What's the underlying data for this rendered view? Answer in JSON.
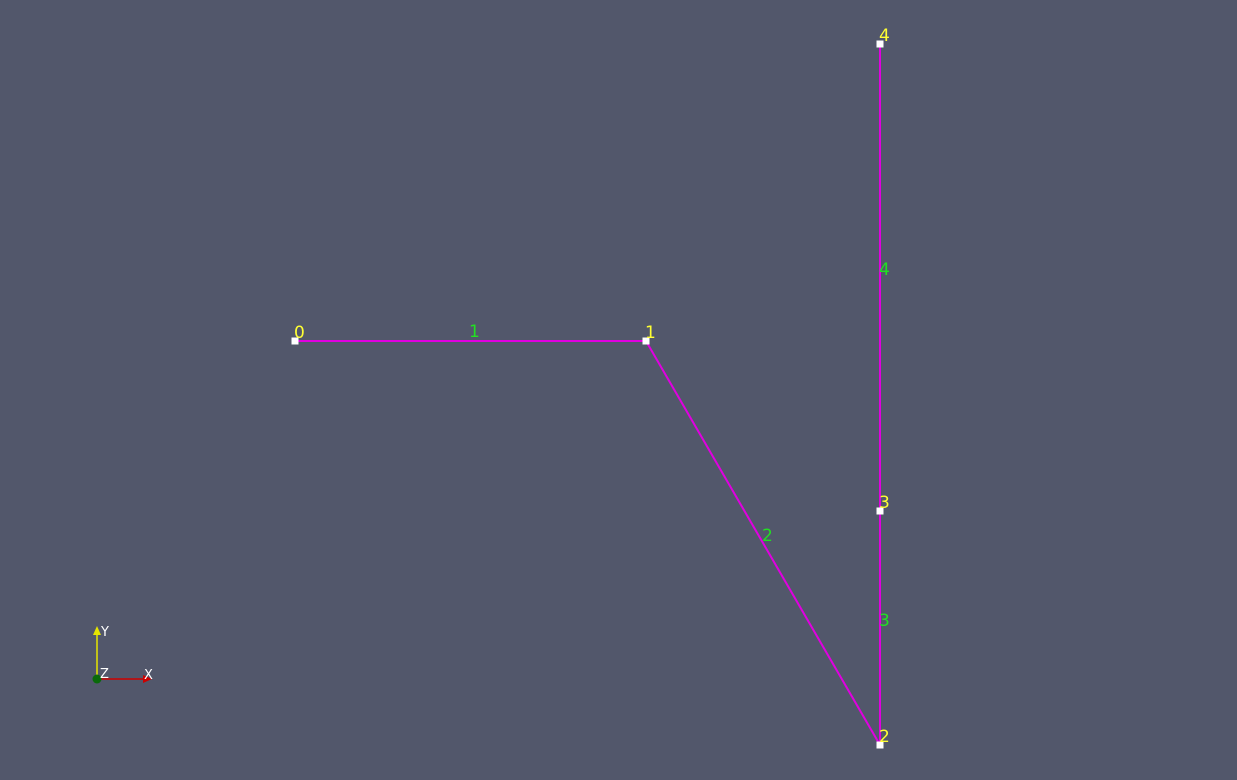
{
  "colors": {
    "background": "#52576b",
    "edge": "#e000e0",
    "node": "#ffffff",
    "node_label": "#ffff33",
    "edge_label": "#22e022",
    "axis_x": "#cc0000",
    "axis_y": "#e6e600",
    "axis_z_origin": "#0a6a0a",
    "axis_label": "#ffffff"
  },
  "node_labels": [
    "0",
    "1",
    "2",
    "3",
    "4"
  ],
  "edge_labels": [
    "1",
    "2",
    "3",
    "4"
  ],
  "axes": {
    "x": "X",
    "y": "Y",
    "z": "Z"
  }
}
